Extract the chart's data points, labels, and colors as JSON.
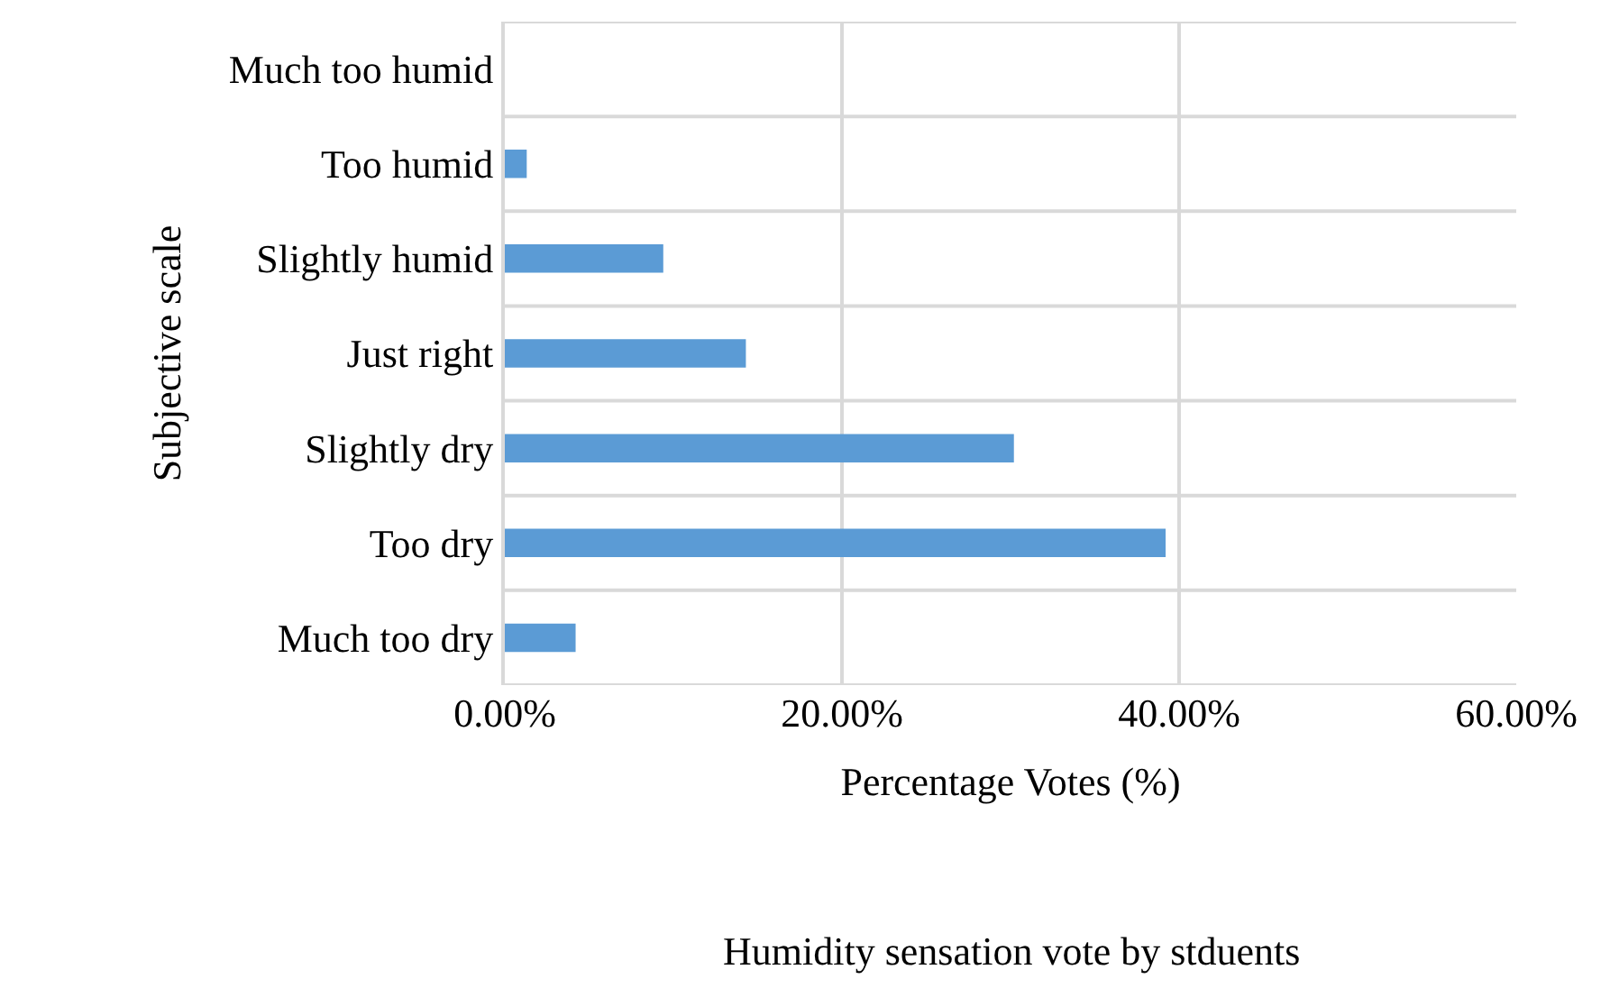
{
  "chart_data": {
    "type": "bar",
    "orientation": "horizontal",
    "title": "Humidity sensation vote by stduents",
    "xlabel": "Percentage Votes (%)",
    "ylabel": "Subjective scale",
    "categories": [
      "Much too humid",
      "Too humid",
      "Slightly humid",
      "Just right",
      "Slightly dry",
      "Too dry",
      "Much too dry"
    ],
    "values": [
      0,
      1.3,
      9.4,
      14.3,
      30.2,
      39.2,
      4.2
    ],
    "color": "#5b9bd5",
    "xlim": [
      0,
      60
    ],
    "xticks": [
      {
        "value": 0,
        "label": "0.00%"
      },
      {
        "value": 20,
        "label": "20.00%"
      },
      {
        "value": 40,
        "label": "40.00%"
      },
      {
        "value": 60,
        "label": "60.00%"
      }
    ],
    "grid": true,
    "legend": false
  }
}
